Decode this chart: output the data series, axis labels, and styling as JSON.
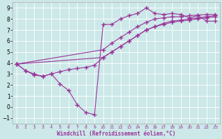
{
  "bg_color": "#cce8e8",
  "grid_color": "#b0d4d4",
  "line_color": "#993399",
  "line_width": 0.8,
  "marker": "+",
  "markersize": 4,
  "xlabel": "Windchill (Refroidissement éolien,°C)",
  "xlabel_color": "#993399",
  "xlim": [
    -0.5,
    23.5
  ],
  "ylim": [
    -1.5,
    9.5
  ],
  "xticks": [
    0,
    1,
    2,
    3,
    4,
    5,
    6,
    7,
    8,
    9,
    10,
    11,
    12,
    13,
    14,
    15,
    16,
    17,
    18,
    19,
    20,
    21,
    22,
    23
  ],
  "yticks": [
    -1,
    0,
    1,
    2,
    3,
    4,
    5,
    6,
    7,
    8,
    9
  ],
  "curve_a_x": [
    0,
    1,
    2,
    3,
    4,
    5,
    6,
    7,
    8,
    9,
    10,
    11,
    12,
    13,
    14,
    15,
    16,
    17,
    18,
    19,
    20,
    21,
    22,
    23
  ],
  "curve_a_y": [
    3.9,
    3.3,
    3.0,
    2.8,
    3.0,
    3.2,
    3.4,
    3.5,
    3.6,
    3.8,
    4.5,
    5.0,
    5.5,
    6.0,
    6.5,
    7.0,
    7.3,
    7.6,
    7.8,
    7.9,
    8.0,
    8.1,
    8.2,
    8.3
  ],
  "curve_b_x": [
    0,
    1,
    2,
    3,
    4,
    5,
    6,
    7,
    8,
    9,
    10,
    11,
    12,
    13,
    14,
    15,
    16,
    17,
    18,
    19,
    20,
    21,
    22,
    23
  ],
  "curve_b_y": [
    3.9,
    3.3,
    2.9,
    2.8,
    3.0,
    2.1,
    1.5,
    0.2,
    -0.5,
    -0.7,
    7.5,
    7.5,
    8.0,
    8.3,
    8.5,
    9.0,
    8.5,
    8.4,
    8.5,
    8.4,
    8.1,
    8.3,
    7.8,
    7.8
  ],
  "curve_c_x": [
    0,
    10,
    11,
    12,
    13,
    14,
    15,
    16,
    17,
    18,
    19,
    20,
    21,
    22,
    23
  ],
  "curve_c_y": [
    3.9,
    4.5,
    5.0,
    5.5,
    6.0,
    6.5,
    7.0,
    7.3,
    7.5,
    7.7,
    7.8,
    7.9,
    8.0,
    8.1,
    8.2
  ],
  "curve_d_x": [
    0,
    10,
    11,
    12,
    13,
    14,
    15,
    16,
    17,
    18,
    19,
    20,
    21,
    22,
    23
  ],
  "curve_d_y": [
    3.9,
    5.2,
    5.8,
    6.3,
    6.8,
    7.3,
    7.7,
    8.0,
    8.1,
    8.2,
    8.2,
    8.3,
    8.35,
    8.4,
    8.4
  ]
}
